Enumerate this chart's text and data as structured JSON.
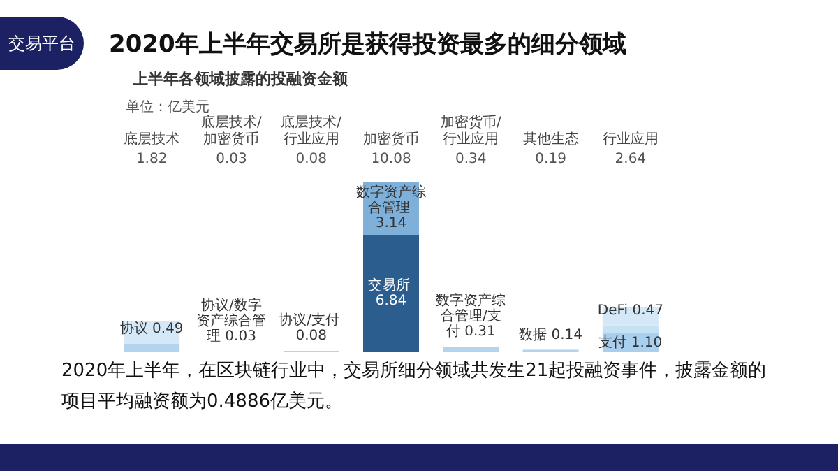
{
  "chart_data": {
    "type": "bar",
    "stacked": true,
    "title": "2020年上半年交易所是获得投资最多的细分领域",
    "subtitle": "上半年各领域披露的投融资金额",
    "ylabel": "单位：亿美元",
    "categories": [
      "底层技术",
      "底层技术/加密货币",
      "底层技术/行业应用",
      "加密货币",
      "加密货币/行业应用",
      "其他生态",
      "行业应用"
    ],
    "series": [
      {
        "colors": [
          "#b3d4ee",
          "#b3d4ee",
          "#b3d4ee",
          "#2b5d8e",
          "#b3d4ee",
          "#b3d4ee",
          "#a9cfee"
        ],
        "values": [
          0.49,
          0.03,
          0.08,
          6.84,
          0.31,
          0.14,
          1.1
        ],
        "value_labels": [
          "协议 0.49",
          "协议/数字资产综合管理 0.03",
          "协议/支付 0.08",
          "交易所 6.84",
          "数字资产综合管理/支付 0.31",
          "数据 0.14",
          "支付 1.10"
        ]
      },
      {
        "colors": [
          null,
          null,
          null,
          "#7eb0da",
          null,
          null,
          "#c6e0f4"
        ],
        "values": [
          null,
          null,
          null,
          3.14,
          null,
          null,
          0.47
        ],
        "value_labels": [
          null,
          null,
          null,
          "数字资产综合管理 3.14",
          null,
          null,
          "DeFi 0.47"
        ]
      },
      {
        "color": "#d4e8f7",
        "values": [
          1.33,
          null,
          null,
          null,
          null,
          null,
          1.07
        ]
      }
    ],
    "annotations": [
      "交易平台",
      "2020年上半年，在区块链行业中，交易所细分领域共发生21起投融资事件，披露金额的项目平均融资额为0.4886亿美元。",
      "1.82",
      "0.03",
      "0.08",
      "10.08",
      "0.34",
      "0.19",
      "2.64"
    ]
  }
}
